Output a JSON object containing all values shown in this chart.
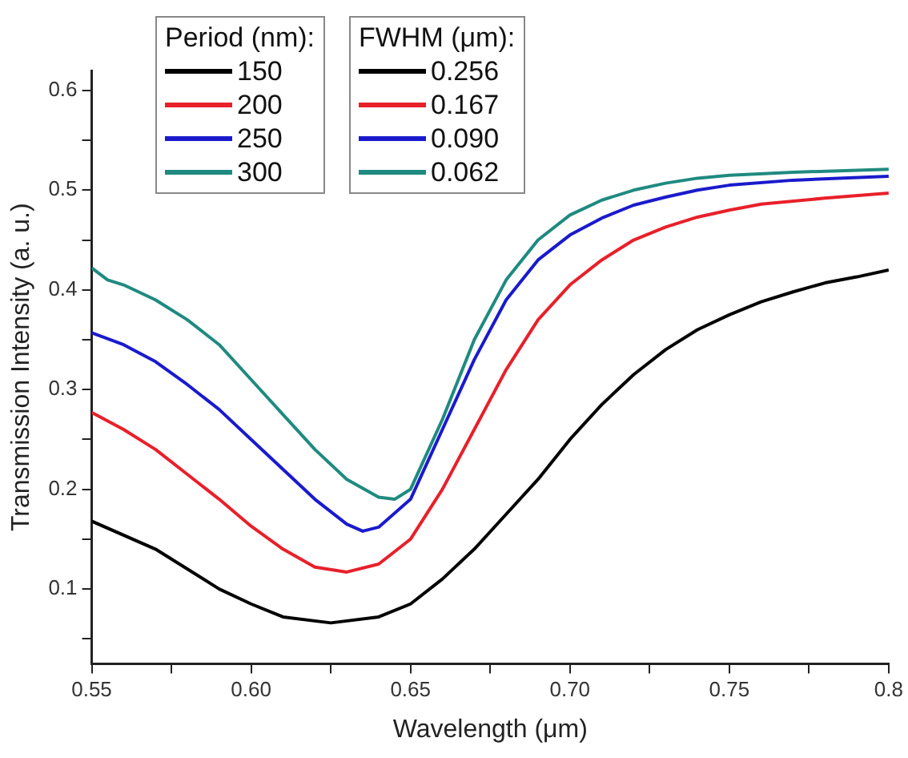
{
  "chart_data": {
    "type": "line",
    "xlabel": "Wavelength (μm)",
    "ylabel": "Transmission Intensity (a. u.)",
    "legend_title": "Period (nm):",
    "legend": "top left",
    "grid": false,
    "marker": "none",
    "line_style": "solid",
    "xlim": [
      0.55,
      0.8
    ],
    "ylim": [
      0.025,
      0.62
    ],
    "xticks": [
      {
        "value": 0.55,
        "label": "0.55"
      },
      {
        "value": 0.575,
        "label": null
      },
      {
        "value": 0.6,
        "label": "0.60"
      },
      {
        "value": 0.625,
        "label": null
      },
      {
        "value": 0.65,
        "label": "0.65"
      },
      {
        "value": 0.675,
        "label": null
      },
      {
        "value": 0.7,
        "label": "0.70"
      },
      {
        "value": 0.725,
        "label": null
      },
      {
        "value": 0.75,
        "label": "0.75"
      },
      {
        "value": 0.775,
        "label": null
      },
      {
        "value": 0.8,
        "label": "0.8"
      }
    ],
    "yticks": [
      {
        "value": 0.05,
        "label": null
      },
      0.1,
      {
        "value": 0.15,
        "label": null
      },
      0.2,
      {
        "value": 0.25,
        "label": null
      },
      0.3,
      {
        "value": 0.35,
        "label": null
      },
      0.4,
      {
        "value": 0.45,
        "label": null
      },
      0.5,
      {
        "value": 0.55,
        "label": null
      },
      0.6
    ],
    "annotations": [
      "FWHM (μm):",
      "0.256",
      "0.167",
      "0.090",
      "0.062"
    ],
    "series": [
      {
        "name": "150",
        "color": "#000000",
        "x": [
          0.55,
          0.57,
          0.59,
          0.6,
          0.61,
          0.625,
          0.64,
          0.65,
          0.66,
          0.67,
          0.68,
          0.69,
          0.7,
          0.71,
          0.72,
          0.73,
          0.74,
          0.75,
          0.76,
          0.77,
          0.78,
          0.79,
          0.8
        ],
        "values": [
          0.168,
          0.14,
          0.1,
          0.085,
          0.072,
          0.066,
          0.072,
          0.085,
          0.11,
          0.14,
          0.175,
          0.21,
          0.25,
          0.285,
          0.315,
          0.34,
          0.36,
          0.375,
          0.388,
          0.398,
          0.407,
          0.413,
          0.42
        ]
      },
      {
        "name": "200",
        "color": "#e8202a",
        "x": [
          0.55,
          0.56,
          0.57,
          0.58,
          0.59,
          0.6,
          0.61,
          0.62,
          0.63,
          0.64,
          0.65,
          0.66,
          0.67,
          0.68,
          0.69,
          0.7,
          0.71,
          0.72,
          0.73,
          0.74,
          0.75,
          0.76,
          0.78,
          0.8
        ],
        "values": [
          0.277,
          0.26,
          0.24,
          0.215,
          0.19,
          0.163,
          0.14,
          0.122,
          0.117,
          0.125,
          0.15,
          0.2,
          0.26,
          0.32,
          0.37,
          0.405,
          0.43,
          0.45,
          0.463,
          0.473,
          0.48,
          0.486,
          0.492,
          0.497
        ]
      },
      {
        "name": "250",
        "color": "#1a1acc",
        "x": [
          0.55,
          0.56,
          0.57,
          0.58,
          0.59,
          0.6,
          0.61,
          0.62,
          0.63,
          0.635,
          0.64,
          0.65,
          0.66,
          0.67,
          0.68,
          0.69,
          0.7,
          0.71,
          0.72,
          0.73,
          0.74,
          0.75,
          0.77,
          0.8
        ],
        "values": [
          0.357,
          0.345,
          0.328,
          0.305,
          0.28,
          0.25,
          0.22,
          0.19,
          0.165,
          0.158,
          0.162,
          0.19,
          0.26,
          0.33,
          0.39,
          0.43,
          0.455,
          0.472,
          0.485,
          0.493,
          0.5,
          0.505,
          0.51,
          0.514
        ]
      },
      {
        "name": "300",
        "color": "#1f8a80",
        "x": [
          0.55,
          0.555,
          0.56,
          0.57,
          0.58,
          0.59,
          0.6,
          0.61,
          0.62,
          0.63,
          0.64,
          0.645,
          0.65,
          0.66,
          0.67,
          0.68,
          0.69,
          0.7,
          0.71,
          0.72,
          0.73,
          0.74,
          0.75,
          0.77,
          0.8
        ],
        "values": [
          0.422,
          0.41,
          0.405,
          0.39,
          0.37,
          0.345,
          0.31,
          0.275,
          0.24,
          0.21,
          0.192,
          0.19,
          0.2,
          0.27,
          0.35,
          0.41,
          0.45,
          0.475,
          0.49,
          0.5,
          0.507,
          0.512,
          0.515,
          0.518,
          0.521
        ]
      }
    ]
  }
}
